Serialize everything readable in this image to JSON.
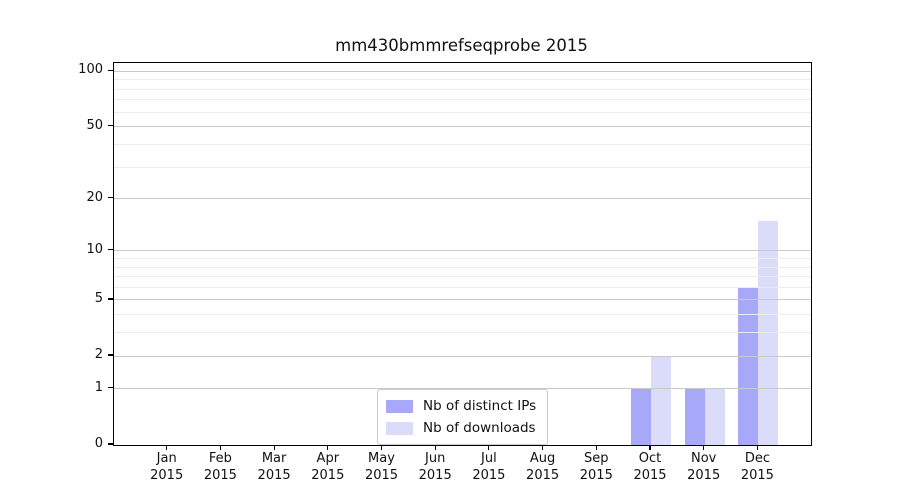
{
  "chart_data": {
    "type": "bar",
    "title": "mm430bmmrefseqprobe 2015",
    "x_ticks": [
      {
        "month": "Jan",
        "year": "2015"
      },
      {
        "month": "Feb",
        "year": "2015"
      },
      {
        "month": "Mar",
        "year": "2015"
      },
      {
        "month": "Apr",
        "year": "2015"
      },
      {
        "month": "May",
        "year": "2015"
      },
      {
        "month": "Jun",
        "year": "2015"
      },
      {
        "month": "Jul",
        "year": "2015"
      },
      {
        "month": "Aug",
        "year": "2015"
      },
      {
        "month": "Sep",
        "year": "2015"
      },
      {
        "month": "Oct",
        "year": "2015"
      },
      {
        "month": "Nov",
        "year": "2015"
      },
      {
        "month": "Dec",
        "year": "2015"
      }
    ],
    "series": [
      {
        "name": "Nb of distinct IPs",
        "color": "#a8a8f8",
        "values": [
          0,
          0,
          0,
          0,
          0,
          0,
          0,
          0,
          0,
          1,
          1,
          6
        ]
      },
      {
        "name": "Nb of downloads",
        "color": "#dbdbfa",
        "values": [
          0,
          0,
          0,
          0,
          0,
          0,
          0,
          0,
          0,
          2,
          1,
          15
        ]
      }
    ],
    "y_axis": {
      "scale": "log1p",
      "ticks": [
        0,
        1,
        2,
        5,
        10,
        20,
        50,
        100
      ],
      "minor_ticks": [
        3,
        4,
        6,
        7,
        8,
        9,
        30,
        40,
        60,
        70,
        80,
        90
      ],
      "min": 0,
      "max": 100
    },
    "grid": "horizontal",
    "legend_position": "lower center",
    "colors": {
      "major_grid": "#c9c9c9",
      "minor_grid": "#ececec",
      "spine": "#000000",
      "text": "#111111",
      "background": "#ffffff"
    }
  }
}
